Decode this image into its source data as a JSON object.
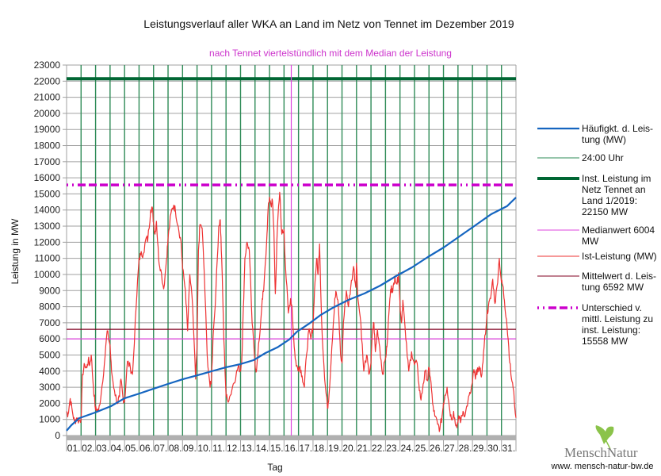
{
  "chart_data": {
    "type": "line",
    "title": "Leistungsverlauf aller WKA an Land im Netz von Tennet im Dezember 2019",
    "subtitle": "nach Tennet viertelstündlich mit dem Median der Leistung",
    "xlabel": "Tag",
    "ylabel": "Leistung in MW",
    "ylim": [
      0,
      23000
    ],
    "ytick_step": 1000,
    "xlim": [
      0,
      31
    ],
    "grid": true,
    "legend_position": "right",
    "x_tick_labels": [
      "01.",
      "02.",
      "03.",
      "04.",
      "05.",
      "06.",
      "07.",
      "08.",
      "09.",
      "10.",
      "11.",
      "12.",
      "13.",
      "14.",
      "15.",
      "16.",
      "17.",
      "18.",
      "19.",
      "20.",
      "21.",
      "22.",
      "23.",
      "24.",
      "25.",
      "26.",
      "27.",
      "28.",
      "29.",
      "30.",
      "31."
    ],
    "y_tick_labels": [
      "0",
      "1000",
      "2000",
      "3000",
      "4000",
      "5000",
      "6000",
      "7000",
      "8000",
      "9000",
      "10000",
      "11000",
      "12000",
      "13000",
      "14000",
      "15000",
      "16000",
      "17000",
      "18000",
      "19000",
      "20000",
      "21000",
      "22000",
      "23000"
    ],
    "colors": {
      "haeufigkeit": "#1565c0",
      "midnight": "#2e8b57",
      "installed": "#006633",
      "median": "#dd44dd",
      "ist": "#ee3333",
      "mean": "#800020",
      "difference": "#cc00cc",
      "grid": "#a0a0a0",
      "floor": "#b0b0b0"
    },
    "series": [
      {
        "name": "Häufigkt. d. Leistung (MW)",
        "key": "haeufigkeit",
        "x_days": [
          0,
          0.33,
          0.87,
          1.97,
          3.06,
          3.99,
          5.03,
          6.01,
          6.99,
          8.03,
          9.02,
          10.0,
          10.98,
          11.97,
          12.9,
          13.72,
          14.54,
          15.36,
          15.9,
          16.72,
          17.54,
          18.36,
          19.45,
          20.55,
          21.64,
          22.73,
          23.83,
          24.92,
          26.01,
          27.1,
          28.2,
          29.29,
          30.38,
          31.0
        ],
        "values": [
          300,
          640,
          1080,
          1430,
          1820,
          2310,
          2610,
          2910,
          3200,
          3500,
          3740,
          3990,
          4230,
          4430,
          4680,
          5120,
          5470,
          5960,
          6450,
          6940,
          7490,
          7930,
          8420,
          8820,
          9310,
          9900,
          10440,
          11080,
          11670,
          12360,
          13050,
          13740,
          14240,
          14780
        ]
      },
      {
        "name": "Ist-Leistung (MW)",
        "key": "ist",
        "x_days": [
          0,
          0.1,
          0.25,
          0.4,
          0.55,
          0.7,
          0.85,
          1.0,
          1.1,
          1.25,
          1.4,
          1.5,
          1.6,
          1.7,
          1.85,
          2.0,
          2.1,
          2.2,
          2.4,
          2.6,
          2.8,
          3.0,
          3.1,
          3.3,
          3.5,
          3.65,
          3.75,
          3.9,
          4.0,
          4.2,
          4.4,
          4.55,
          4.8,
          5.0,
          5.1,
          5.3,
          5.5,
          5.6,
          5.8,
          5.9,
          6.0,
          6.1,
          6.2,
          6.35,
          6.5,
          6.7,
          6.9,
          7.0,
          7.2,
          7.4,
          7.5,
          7.7,
          7.9,
          8.0,
          8.2,
          8.35,
          8.5,
          8.7,
          8.9,
          9.0,
          9.1,
          9.2,
          9.35,
          9.5,
          9.7,
          9.9,
          10.0,
          10.1,
          10.3,
          10.5,
          10.6,
          10.7,
          10.85,
          11.0,
          11.1,
          11.3,
          11.5,
          11.7,
          11.85,
          12.0,
          12.1,
          12.2,
          12.3,
          12.45,
          12.6,
          12.8,
          13.0,
          13.1,
          13.3,
          13.5,
          13.6,
          13.8,
          13.9,
          14.0,
          14.1,
          14.2,
          14.3,
          14.4,
          14.55,
          14.7,
          14.85,
          15.0,
          15.1,
          15.3,
          15.45,
          15.55,
          15.7,
          15.85,
          16.0,
          16.1,
          16.25,
          16.4,
          16.55,
          16.7,
          16.85,
          17.0,
          17.1,
          17.25,
          17.35,
          17.45,
          17.6,
          17.8,
          18.0,
          18.1,
          18.3,
          18.5,
          18.6,
          18.75,
          18.9,
          19.0,
          19.1,
          19.3,
          19.45,
          19.6,
          19.8,
          19.95,
          20.0,
          20.1,
          20.3,
          20.5,
          20.7,
          20.85,
          21.0,
          21.1,
          21.2,
          21.3,
          21.45,
          21.6,
          21.8,
          22.0,
          22.1,
          22.3,
          22.4,
          22.5,
          22.65,
          22.8,
          22.9,
          23.0,
          23.1,
          23.2,
          23.4,
          23.6,
          23.8,
          24.0,
          24.15,
          24.3,
          24.45,
          24.6,
          24.75,
          24.9,
          25.0,
          25.1,
          25.25,
          25.4,
          25.6,
          25.75,
          25.9,
          26.0,
          26.1,
          26.25,
          26.4,
          26.55,
          26.7,
          26.85,
          27.0,
          27.1,
          27.2,
          27.35,
          27.5,
          27.7,
          27.85,
          28.0,
          28.1,
          28.2,
          28.35,
          28.5,
          28.65,
          28.8,
          29.0,
          29.1,
          29.25,
          29.4,
          29.55,
          29.7,
          29.85,
          30.0,
          30.1,
          30.2,
          30.35,
          30.5,
          30.65,
          30.8,
          31.0
        ],
        "values": [
          1500,
          1300,
          2300,
          1500,
          800,
          1100,
          900,
          1000,
          3800,
          4400,
          4200,
          4700,
          4400,
          5000,
          3000,
          1600,
          1600,
          1500,
          2700,
          4400,
          6500,
          5600,
          4000,
          2800,
          2000,
          2400,
          3500,
          2300,
          2100,
          4600,
          4200,
          3800,
          8000,
          11000,
          11200,
          11300,
          12300,
          12100,
          14000,
          14200,
          13200,
          12500,
          13300,
          11000,
          10300,
          9100,
          11000,
          12200,
          13800,
          14300,
          14000,
          13000,
          12000,
          10400,
          9000,
          6500,
          10000,
          8000,
          3500,
          5500,
          11500,
          13100,
          12900,
          10000,
          5000,
          3000,
          3500,
          6000,
          9000,
          13000,
          13400,
          11000,
          6000,
          2500,
          2200,
          2500,
          3200,
          3800,
          4300,
          4000,
          5000,
          8000,
          11000,
          12000,
          11500,
          7000,
          4500,
          4000,
          6000,
          8500,
          9000,
          12000,
          14000,
          14800,
          14300,
          14600,
          12700,
          8800,
          13000,
          15100,
          12500,
          12800,
          10500,
          7600,
          8500,
          8000,
          5500,
          4300,
          4200,
          4300,
          3700,
          3000,
          5000,
          6500,
          6000,
          6800,
          9000,
          11000,
          10000,
          11900,
          7000,
          3500,
          1700,
          2500,
          5500,
          8500,
          8900,
          8000,
          5000,
          4500,
          7000,
          9000,
          8000,
          9200,
          10500,
          9200,
          10700,
          8500,
          7000,
          4000,
          5000,
          3800,
          4500,
          6500,
          7000,
          5200,
          6600,
          5500,
          3800,
          4800,
          5500,
          8500,
          9300,
          8900,
          9900,
          9400,
          10100,
          8200,
          7000,
          8400,
          6000,
          4000,
          5200,
          4400,
          4600,
          3200,
          2200,
          3200,
          4000,
          3400,
          4200,
          3600,
          2000,
          1200,
          700,
          400,
          1200,
          2000,
          2500,
          3000,
          1800,
          1000,
          1500,
          600,
          800,
          1200,
          900,
          1500,
          1300,
          2200,
          2600,
          3300,
          4100,
          3500,
          4200,
          4000,
          3800,
          5500,
          7500,
          8000,
          8500,
          9700,
          8200,
          9300,
          11000,
          9500,
          9300,
          8400,
          7200,
          5500,
          3800,
          3000,
          1100
        ]
      },
      {
        "name": "Inst. Leistung im Netz Tennet an Land 1/2019: 22150  MW",
        "key": "installed",
        "constant": 22150
      },
      {
        "name": "Medianwert 6004 MW",
        "key": "median",
        "constant": 6004,
        "vertical_marker_day": 15.5
      },
      {
        "name": "Mittelwert d. Leistung 6592 MW",
        "key": "mean",
        "constant": 6592
      },
      {
        "name": "Unterschied v. mittl. Leistung zu inst. Leistung: 15558 MW",
        "key": "difference",
        "constant": 15558
      },
      {
        "name": "24:00 Uhr",
        "key": "midnight",
        "vertical_every_days": 1
      }
    ],
    "legend": [
      {
        "key": "haeufigkeit",
        "lines": [
          "Häufigkt. d. Leis-",
          "tung (MW)"
        ]
      },
      {
        "key": "midnight",
        "lines": [
          "24:00 Uhr"
        ]
      },
      {
        "key": "installed",
        "lines": [
          "Inst. Leistung im",
          "Netz Tennet an",
          "Land 1/2019:",
          "22150  MW"
        ]
      },
      {
        "key": "median",
        "lines": [
          "Medianwert 6004",
          "MW"
        ]
      },
      {
        "key": "ist",
        "lines": [
          "Ist-Leistung (MW)"
        ]
      },
      {
        "key": "mean",
        "lines": [
          "Mittelwert d. Leis-",
          "tung 6592 MW"
        ]
      },
      {
        "key": "difference",
        "lines": [
          "Unterschied v.",
          "mittl. Leistung zu",
          "inst. Leistung:",
          "15558 MW"
        ]
      }
    ]
  },
  "logo": {
    "name_part1": "Mensch",
    "name_part2": "Natur",
    "url": "www. mensch-natur-bw.de",
    "leaf_color": "#8bc34a"
  }
}
